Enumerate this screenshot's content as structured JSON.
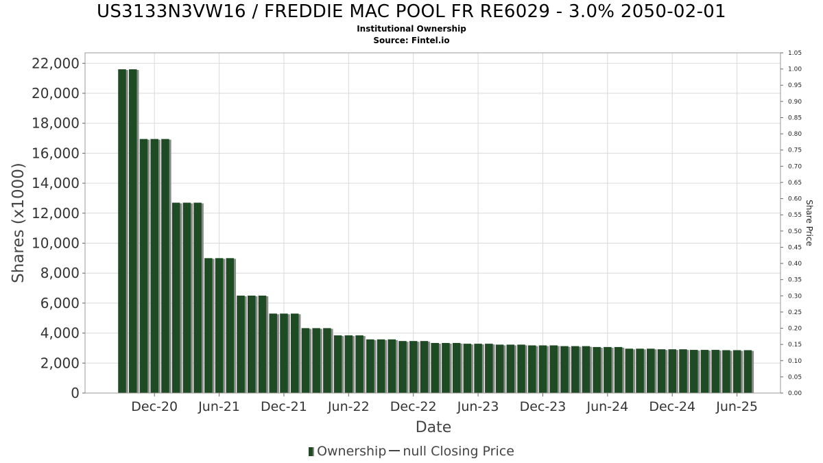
{
  "title": "US3133N3VW16 / FREDDIE MAC POOL FR RE6029 - 3.0% 2050-02-01",
  "subtitle": "Institutional Ownership",
  "source": "Source: Fintel.io",
  "legend": {
    "ownership_label": "Ownership",
    "price_label": "null Closing Price"
  },
  "colors": {
    "bar": "#1e4a24",
    "bar_shadow": "#8a8a8a",
    "grid": "#d9d9d9"
  },
  "chart_data": {
    "type": "bar",
    "xlabel": "Date",
    "ylabel": "Shares (x1000)",
    "y2label": "Share Price",
    "ylim": [
      0,
      22700
    ],
    "y2lim": [
      0,
      1.05
    ],
    "yticks": [
      "0",
      "2,000",
      "4,000",
      "6,000",
      "8,000",
      "10,000",
      "12,000",
      "14,000",
      "16,000",
      "18,000",
      "20,000",
      "22,000"
    ],
    "y2ticks": [
      "0.00",
      "0.05",
      "0.10",
      "0.15",
      "0.20",
      "0.25",
      "0.30",
      "0.35",
      "0.40",
      "0.45",
      "0.50",
      "0.55",
      "0.60",
      "0.65",
      "0.70",
      "0.75",
      "0.80",
      "0.85",
      "0.90",
      "0.95",
      "1.00",
      "1.05"
    ],
    "xticks": [
      "Dec-20",
      "Jun-21",
      "Dec-21",
      "Jun-22",
      "Dec-22",
      "Jun-23",
      "Dec-23",
      "Jun-24",
      "Dec-24",
      "Jun-25"
    ],
    "x_start": "2020-09",
    "series": [
      {
        "name": "Ownership",
        "values": [
          21600,
          21600,
          16950,
          16950,
          16950,
          12700,
          12700,
          12700,
          9000,
          9000,
          9000,
          6500,
          6500,
          6500,
          5300,
          5300,
          5300,
          4330,
          4330,
          4330,
          3850,
          3850,
          3850,
          3580,
          3580,
          3580,
          3470,
          3470,
          3470,
          3340,
          3340,
          3340,
          3290,
          3290,
          3290,
          3230,
          3230,
          3230,
          3180,
          3180,
          3180,
          3130,
          3130,
          3130,
          3070,
          3070,
          3070,
          2960,
          2960,
          2960,
          2920,
          2920,
          2920,
          2880,
          2880,
          2880,
          2860,
          2860,
          2860
        ]
      }
    ],
    "grid": true,
    "legend_position": "bottom"
  }
}
